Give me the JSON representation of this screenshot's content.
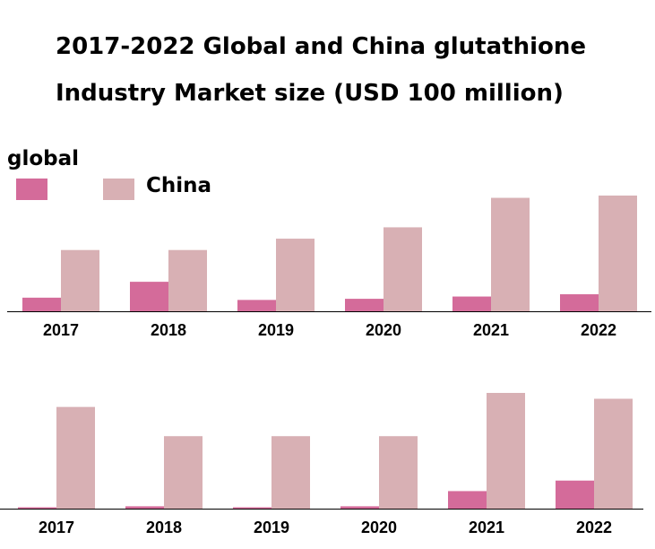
{
  "title_lines": [
    "2017-2022 Global and China glutathione",
    "Industry Market size (USD 100 million)"
  ],
  "legend": {
    "global": {
      "label": "global",
      "color": "#d46b9a"
    },
    "china": {
      "label": "China",
      "color": "#d8b0b4"
    }
  },
  "chart_data": [
    {
      "type": "bar",
      "categories": [
        "2017",
        "2018",
        "2019",
        "2020",
        "2021",
        "2022"
      ],
      "series": [
        {
          "name": "global",
          "values": [
            1.2,
            2.6,
            1.0,
            1.1,
            1.3,
            1.5
          ],
          "color": "#d46b9a"
        },
        {
          "name": "China",
          "values": [
            5.4,
            5.4,
            6.4,
            7.4,
            10.0,
            10.2
          ],
          "color": "#d8b0b4"
        }
      ],
      "ylim": [
        0,
        10.2
      ],
      "grid": false
    },
    {
      "type": "bar",
      "categories": [
        "2017",
        "2018",
        "2019",
        "2020",
        "2021",
        "2022"
      ],
      "series": [
        {
          "name": "global",
          "values": [
            0.05,
            0.2,
            0.1,
            0.2,
            1.5,
            2.4
          ],
          "color": "#d46b9a"
        },
        {
          "name": "China",
          "values": [
            8.7,
            6.2,
            6.2,
            6.2,
            9.9,
            9.4
          ],
          "color": "#d8b0b4"
        }
      ],
      "ylim": [
        0,
        9.9
      ],
      "grid": false
    }
  ]
}
